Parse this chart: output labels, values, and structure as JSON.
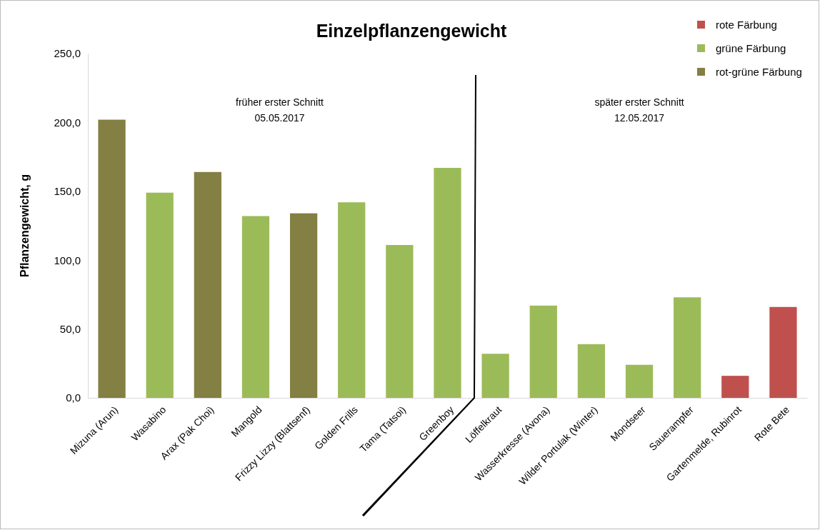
{
  "chart_data": {
    "type": "bar",
    "title": "Einzelpflanzengewicht",
    "ylabel": "Pflanzengewicht, g",
    "categories": [
      "Mizuna (Arun)",
      "Wasabino",
      "Arax (Pak Choi)",
      "Mangold",
      "Frizzy Lizzy (Blattsenf)",
      "Golden Frills",
      "Tama (Tatsoi)",
      "Greenboy",
      "Löffelkraut",
      "Wasserkresse (Avona)",
      "Wilder Portulak (Winter)",
      "Mondseer",
      "Sauerampfer",
      "Gartenmelde, Rubinrot",
      "Rote Bete"
    ],
    "series": [
      {
        "name": "rote Färbung",
        "color": "#c0504d",
        "values": [
          null,
          null,
          null,
          null,
          null,
          null,
          null,
          null,
          null,
          null,
          null,
          null,
          null,
          16,
          66
        ]
      },
      {
        "name": "grüne Färbung",
        "color": "#9bbb59",
        "values": [
          null,
          149,
          null,
          132,
          null,
          142,
          111,
          167,
          32,
          67,
          39,
          24,
          73,
          null,
          null
        ]
      },
      {
        "name": "rot-grüne Färbung",
        "color": "#847f42",
        "values": [
          202,
          null,
          164,
          null,
          134,
          null,
          null,
          null,
          null,
          null,
          null,
          null,
          null,
          null,
          null
        ]
      }
    ],
    "ylim": [
      0,
      250
    ],
    "yticks": [
      {
        "value": 0,
        "label": "0,0"
      },
      {
        "value": 50,
        "label": "50,0"
      },
      {
        "value": 100,
        "label": "100,0"
      },
      {
        "value": 150,
        "label": "150,0"
      },
      {
        "value": 200,
        "label": "200,0"
      },
      {
        "value": 250,
        "label": "250,0"
      }
    ],
    "grid": false,
    "legend": "top right",
    "annotations": [
      "früher erster Schnitt\n05.05.2017",
      "später erster Schnitt\n12.05.2017"
    ]
  }
}
